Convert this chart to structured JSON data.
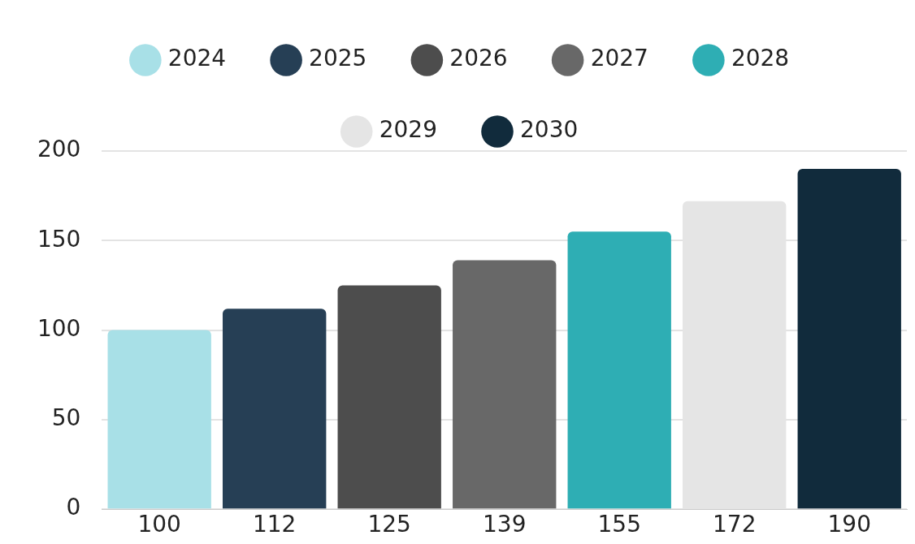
{
  "chart_data": {
    "type": "bar",
    "categories": [
      "100",
      "112",
      "125",
      "139",
      "155",
      "172",
      "190"
    ],
    "series": [
      {
        "name": "2024",
        "color": "#a8e0e7",
        "values": [
          100,
          null,
          null,
          null,
          null,
          null,
          null
        ]
      },
      {
        "name": "2025",
        "color": "#263f55",
        "values": [
          null,
          112,
          null,
          null,
          null,
          null,
          null
        ]
      },
      {
        "name": "2026",
        "color": "#4d4d4d",
        "values": [
          null,
          null,
          125,
          null,
          null,
          null,
          null
        ]
      },
      {
        "name": "2027",
        "color": "#686868",
        "values": [
          null,
          null,
          null,
          139,
          null,
          null,
          null
        ]
      },
      {
        "name": "2028",
        "color": "#2eaeb4",
        "values": [
          null,
          null,
          null,
          null,
          155,
          null,
          null
        ]
      },
      {
        "name": "2029",
        "color": "#e5e5e5",
        "values": [
          null,
          null,
          null,
          null,
          null,
          172,
          null
        ]
      },
      {
        "name": "2030",
        "color": "#112b3c",
        "values": [
          null,
          null,
          null,
          null,
          null,
          null,
          190
        ]
      }
    ],
    "ylim": [
      0,
      200
    ],
    "yticks": [
      0,
      50,
      100,
      150,
      200
    ],
    "grid": "y",
    "legend": "top"
  }
}
